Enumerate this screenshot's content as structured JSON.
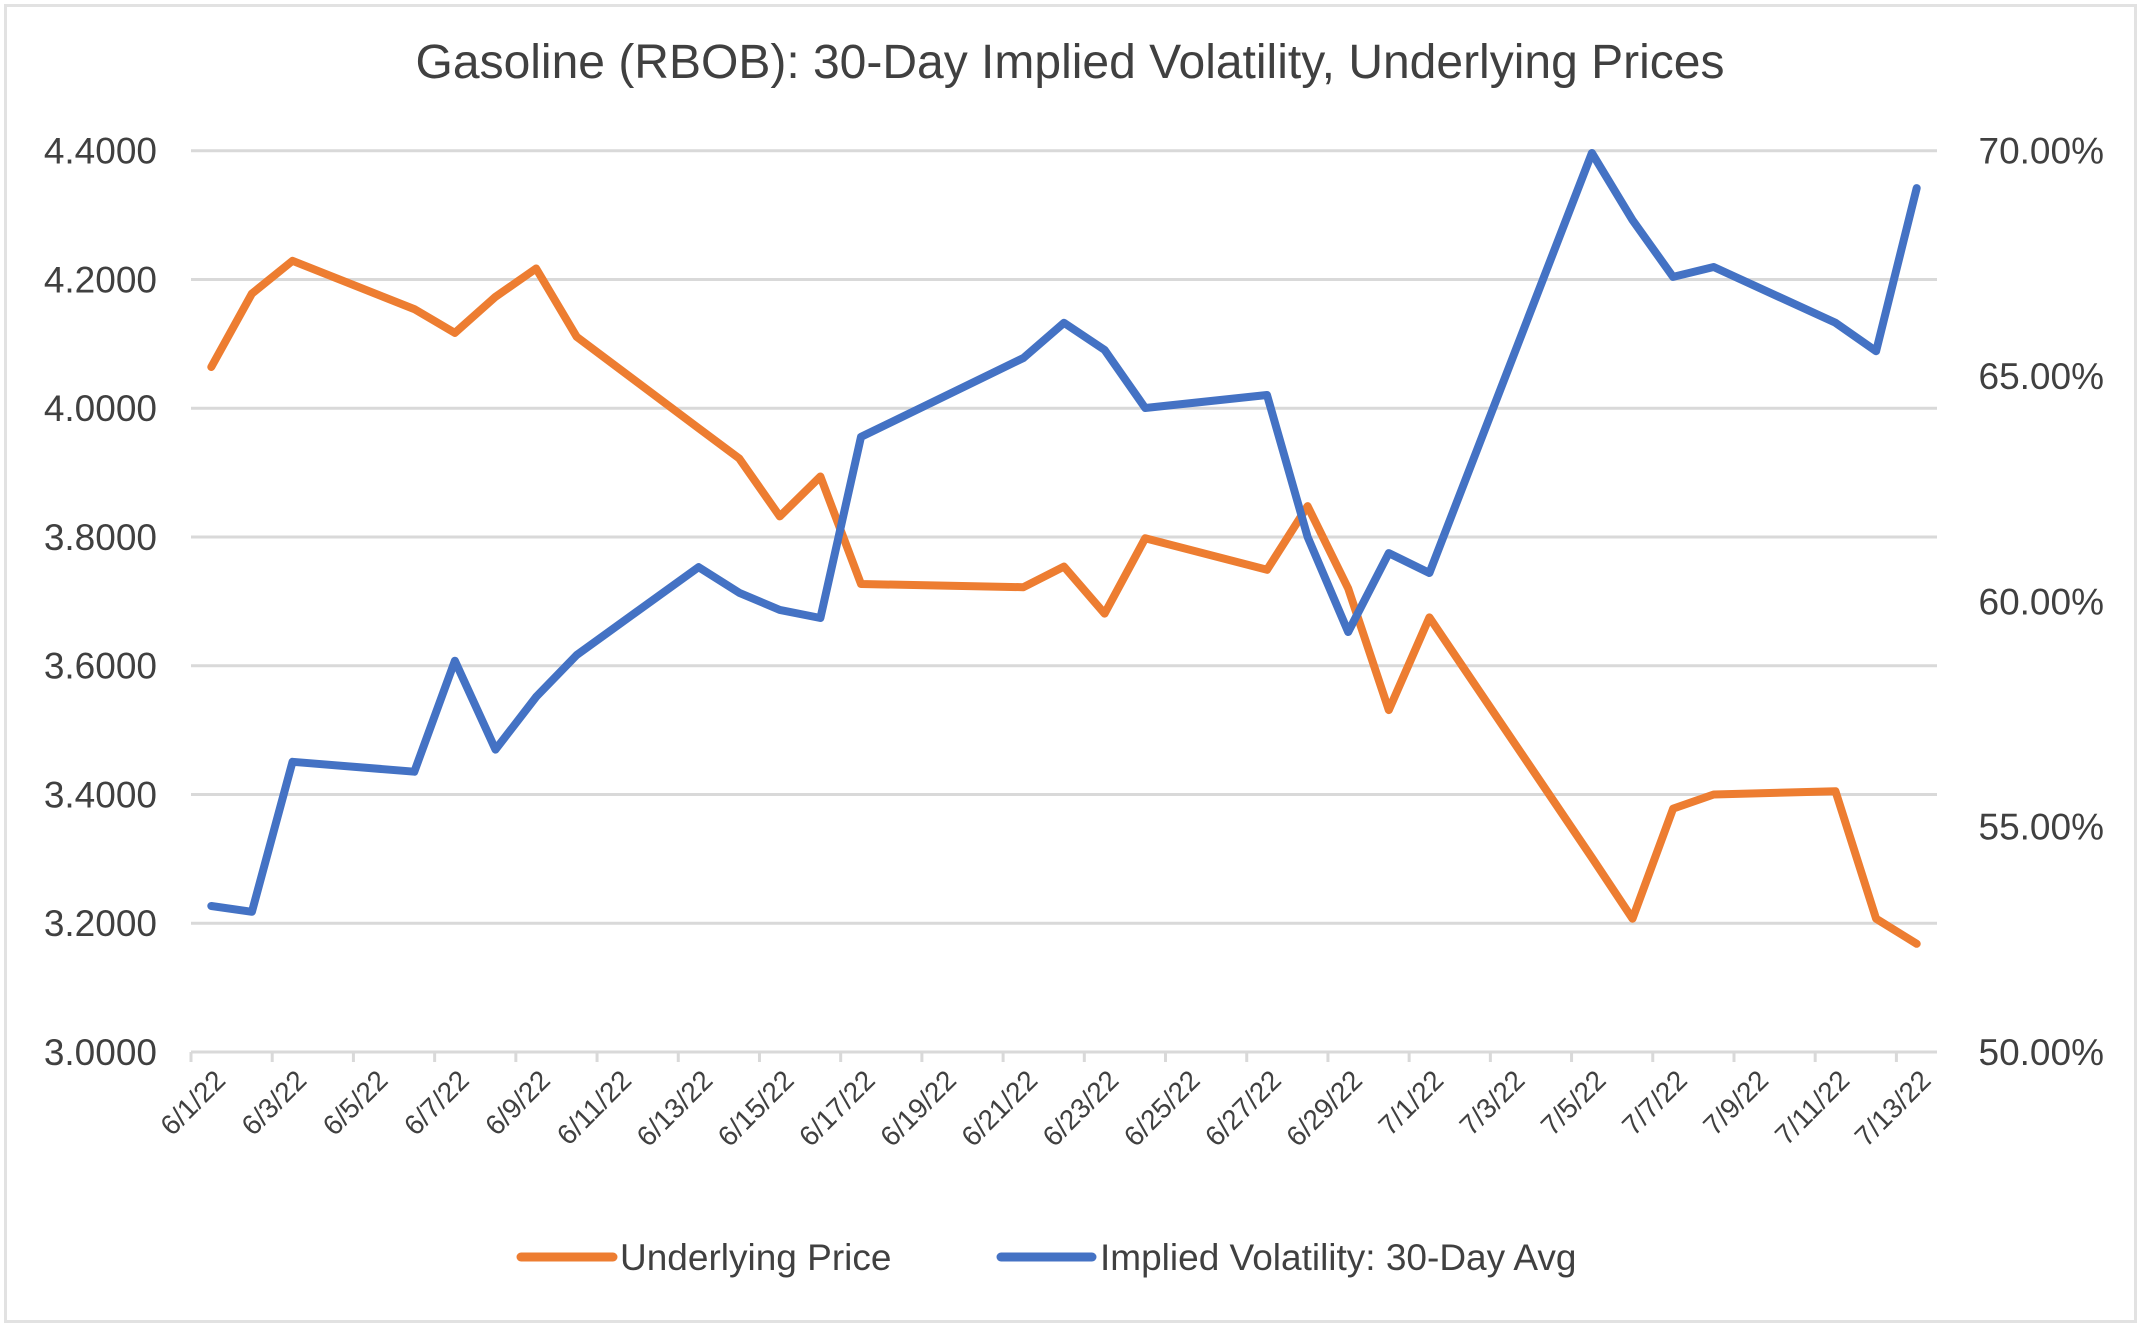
{
  "chart_data": {
    "type": "line",
    "title": "Gasoline (RBOB): 30-Day Implied Volatility, Underlying Prices",
    "xlabel": "",
    "ylabel_left": "",
    "ylabel_right": "",
    "x_start_date": "6/1/22",
    "x_tick_labels": [
      "6/1/22",
      "6/3/22",
      "6/5/22",
      "6/7/22",
      "6/9/22",
      "6/11/22",
      "6/13/22",
      "6/15/22",
      "6/17/22",
      "6/19/22",
      "6/21/22",
      "6/23/22",
      "6/25/22",
      "6/27/22",
      "6/29/22",
      "7/1/22",
      "7/3/22",
      "7/5/22",
      "7/7/22",
      "7/9/22",
      "7/11/22",
      "7/13/22"
    ],
    "x_days_total": 43,
    "x": [
      "6/1/22",
      "6/2/22",
      "6/3/22",
      "6/6/22",
      "6/7/22",
      "6/8/22",
      "6/9/22",
      "6/10/22",
      "6/13/22",
      "6/14/22",
      "6/15/22",
      "6/16/22",
      "6/17/22",
      "6/21/22",
      "6/22/22",
      "6/23/22",
      "6/24/22",
      "6/27/22",
      "6/28/22",
      "6/29/22",
      "6/30/22",
      "7/1/22",
      "7/5/22",
      "7/6/22",
      "7/7/22",
      "7/8/22",
      "7/11/22",
      "7/12/22",
      "7/13/22"
    ],
    "x_day_offsets": [
      0,
      1,
      2,
      5,
      6,
      7,
      8,
      9,
      12,
      13,
      14,
      15,
      16,
      20,
      21,
      22,
      23,
      26,
      27,
      28,
      29,
      30,
      34,
      35,
      36,
      37,
      40,
      41,
      42
    ],
    "y_left": {
      "range": [
        3.0,
        4.4
      ],
      "ticks": [
        3.0,
        3.2,
        3.4,
        3.6,
        3.8,
        4.0,
        4.2,
        4.4
      ],
      "tick_labels": [
        "3.0000",
        "3.2000",
        "3.4000",
        "3.6000",
        "3.8000",
        "4.0000",
        "4.2000",
        "4.4000"
      ]
    },
    "y_right": {
      "range": [
        50,
        70
      ],
      "ticks": [
        50,
        55,
        60,
        65,
        70
      ],
      "tick_labels": [
        "50.00%",
        "55.00%",
        "60.00%",
        "65.00%",
        "70.00%"
      ]
    },
    "grid": true,
    "legend_position": "bottom",
    "series": [
      {
        "name": "Underlying Price",
        "axis": "left",
        "color": "#ED7D31",
        "values": [
          4.064,
          4.178,
          4.229,
          4.154,
          4.117,
          4.173,
          4.217,
          4.111,
          3.969,
          3.922,
          3.832,
          3.894,
          3.727,
          3.722,
          3.754,
          3.681,
          3.798,
          3.749,
          3.848,
          3.72,
          3.531,
          3.675,
          3.302,
          3.207,
          3.378,
          3.4,
          3.405,
          3.207,
          3.168
        ]
      },
      {
        "name": "Implied Volatility: 30-Day Avg",
        "axis": "right",
        "color": "#4472C4",
        "values": [
          53.24,
          53.11,
          56.44,
          56.22,
          58.68,
          56.71,
          57.88,
          58.81,
          60.76,
          60.19,
          59.81,
          59.63,
          63.65,
          65.4,
          66.18,
          65.58,
          64.29,
          64.58,
          61.43,
          59.32,
          61.07,
          60.63,
          69.95,
          68.46,
          67.2,
          67.42,
          66.18,
          65.55,
          69.17
        ]
      }
    ]
  }
}
